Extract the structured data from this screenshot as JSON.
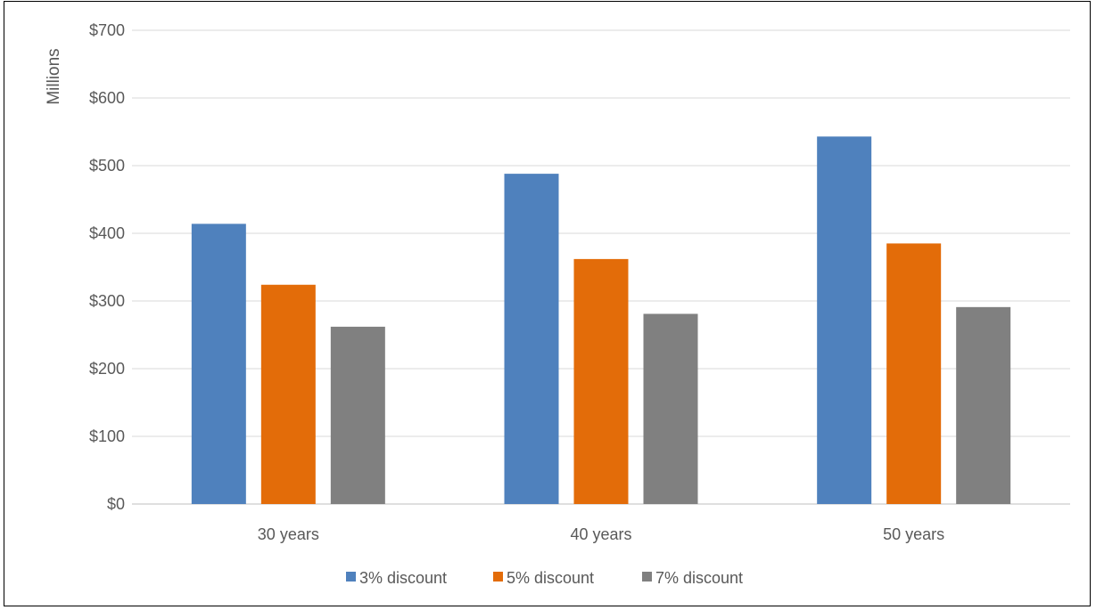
{
  "chart_data": {
    "type": "bar",
    "title": "",
    "xlabel": "",
    "ylabel": "Millions",
    "categories": [
      "30 years",
      "40 years",
      "50  years"
    ],
    "series": [
      {
        "name": "3% discount",
        "color": "#4f81bd",
        "values": [
          414,
          488,
          543
        ]
      },
      {
        "name": "5% discount",
        "color": "#e36c09",
        "values": [
          324,
          362,
          385
        ]
      },
      {
        "name": "7% discount",
        "color": "#808080",
        "values": [
          262,
          281,
          291
        ]
      }
    ],
    "ylim": [
      0,
      700
    ],
    "yticks": [
      0,
      100,
      200,
      300,
      400,
      500,
      600,
      700
    ],
    "ytick_labels": [
      "$0",
      "$100",
      "$200",
      "$300",
      "$400",
      "$500",
      "$600",
      "$700"
    ],
    "grid": true,
    "legend_position": "bottom"
  }
}
